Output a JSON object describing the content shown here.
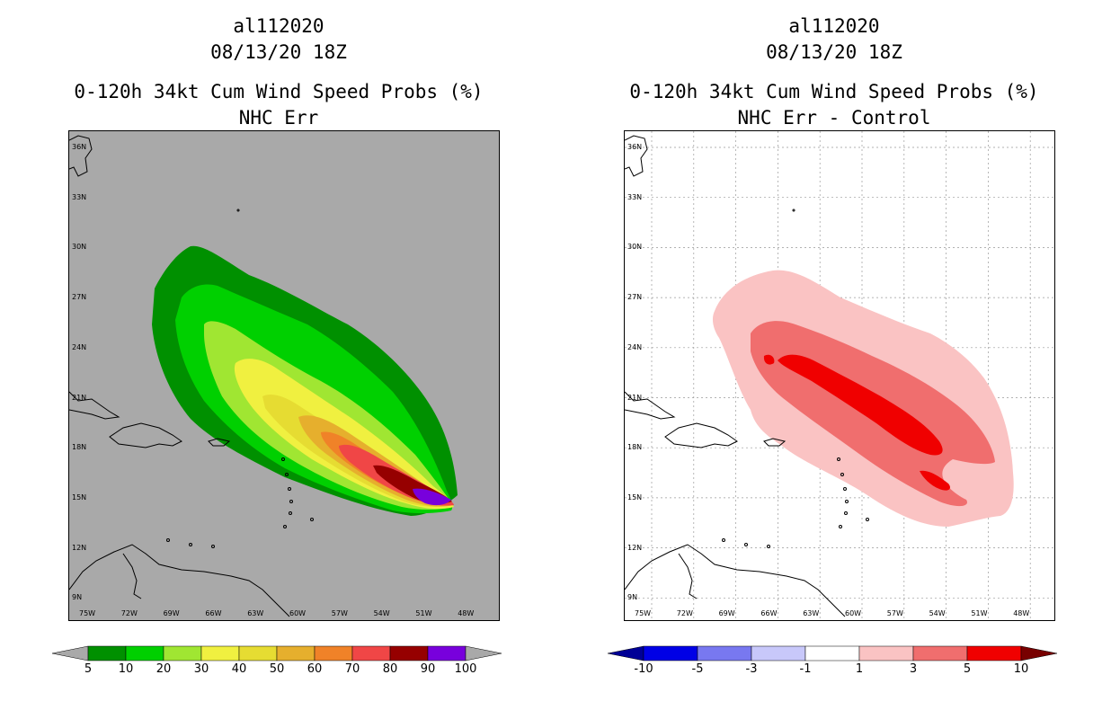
{
  "left_panel": {
    "storm_id": "al112020",
    "datetime": "08/13/20 18Z",
    "title": "0-120h 34kt Cum Wind Speed Probs (%)",
    "subtitle": "NHC Err",
    "background_color": "#a9a9a9",
    "colorbar": {
      "labels": [
        "5",
        "10",
        "20",
        "30",
        "40",
        "50",
        "60",
        "70",
        "80",
        "90",
        "100"
      ],
      "colors": [
        "#009000",
        "#00d000",
        "#a0e632",
        "#f0f040",
        "#e6dc32",
        "#e6af2d",
        "#f08228",
        "#f04646",
        "#960000",
        "#7800dc"
      ],
      "under_color": "#a9a9a9",
      "over_color": "#a9a9a9"
    }
  },
  "right_panel": {
    "storm_id": "al112020",
    "datetime": "08/13/20 18Z",
    "title": "0-120h 34kt Cum Wind Speed Probs (%)",
    "subtitle": "NHC Err - Control",
    "background_color": "#ffffff",
    "colorbar": {
      "labels": [
        "-10",
        "-5",
        "-3",
        "-1",
        "1",
        "3",
        "5",
        "10"
      ],
      "colors": [
        "#0000e6",
        "#7878f0",
        "#c8c8fa",
        "#ffffff",
        "#fac3c3",
        "#f06e6e",
        "#f00000"
      ],
      "under_color": "#000096",
      "over_color": "#780000"
    }
  },
  "map": {
    "lat_labels": [
      "36N",
      "33N",
      "30N",
      "27N",
      "24N",
      "21N",
      "18N",
      "15N",
      "12N",
      "9N"
    ],
    "lon_labels": [
      "75W",
      "72W",
      "69W",
      "66W",
      "63W",
      "60W",
      "57W",
      "54W",
      "51W",
      "48W"
    ]
  }
}
